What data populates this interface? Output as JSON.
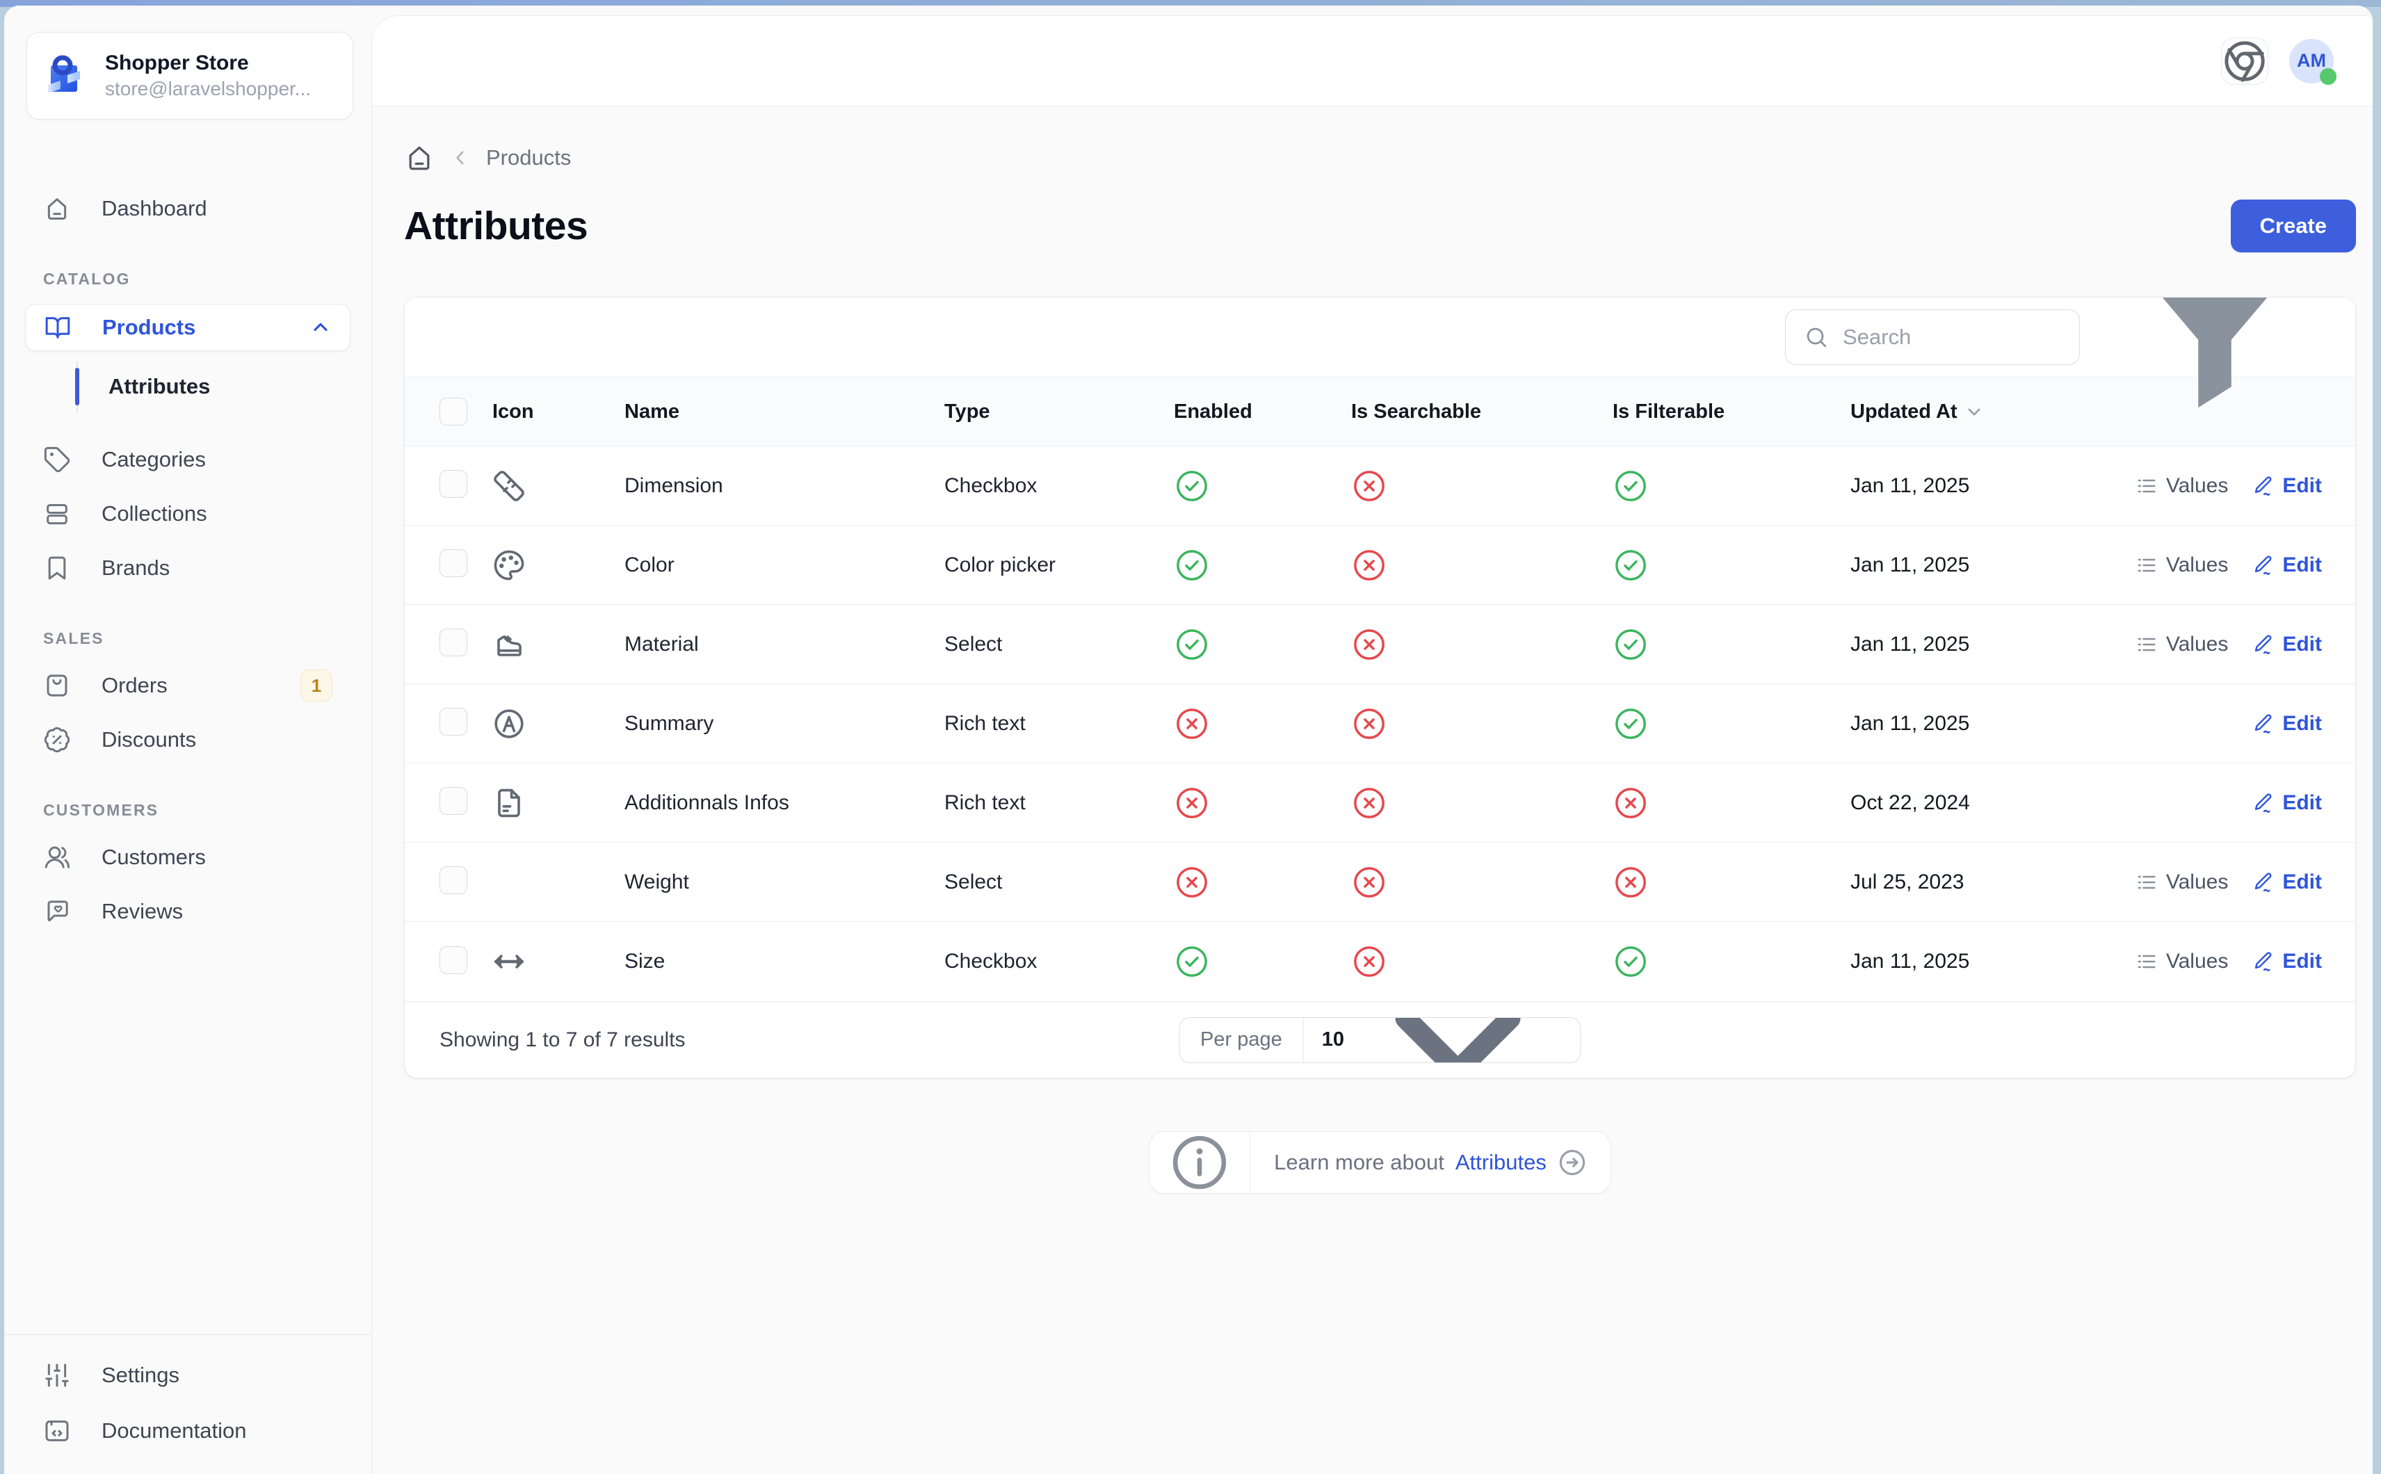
{
  "colors": {
    "accent": "#3d5fdd",
    "link": "#2f54db",
    "success": "#3cb55f",
    "danger": "#e5484d",
    "badge_orange": "#b8821f"
  },
  "store": {
    "name": "Shopper Store",
    "email": "store@laravelshopper..."
  },
  "topbar": {
    "avatar_initials": "AM"
  },
  "sidebar": {
    "dashboard": "Dashboard",
    "sections": {
      "catalog": "CATALOG",
      "sales": "SALES",
      "customers": "CUSTOMERS"
    },
    "products": "Products",
    "products_sub": [
      "Attributes"
    ],
    "categories": "Categories",
    "collections": "Collections",
    "brands": "Brands",
    "orders": "Orders",
    "orders_badge": "1",
    "discounts": "Discounts",
    "customers": "Customers",
    "reviews": "Reviews",
    "settings": "Settings",
    "documentation": "Documentation"
  },
  "breadcrumb": {
    "current": "Products"
  },
  "page": {
    "title": "Attributes",
    "create_label": "Create"
  },
  "toolbar": {
    "search_placeholder": "Search",
    "filter_count": "0"
  },
  "table": {
    "headers": [
      "Icon",
      "Name",
      "Type",
      "Enabled",
      "Is Searchable",
      "Is Filterable",
      "Updated At"
    ],
    "actions": {
      "values_label": "Values",
      "edit_label": "Edit"
    },
    "rows": [
      {
        "icon": "ruler-icon",
        "name": "Dimension",
        "type": "Checkbox",
        "enabled": true,
        "searchable": false,
        "filterable": true,
        "updated": "Jan 11, 2025",
        "values": true
      },
      {
        "icon": "palette-icon",
        "name": "Color",
        "type": "Color picker",
        "enabled": true,
        "searchable": false,
        "filterable": true,
        "updated": "Jan 11, 2025",
        "values": true
      },
      {
        "icon": "shoe-icon",
        "name": "Material",
        "type": "Select",
        "enabled": true,
        "searchable": false,
        "filterable": true,
        "updated": "Jan 11, 2025",
        "values": true
      },
      {
        "icon": "circle-a-icon",
        "name": "Summary",
        "type": "Rich text",
        "enabled": false,
        "searchable": false,
        "filterable": true,
        "updated": "Jan 11, 2025",
        "values": false
      },
      {
        "icon": "file-icon",
        "name": "Additionnals Infos",
        "type": "Rich text",
        "enabled": false,
        "searchable": false,
        "filterable": false,
        "updated": "Oct 22, 2024",
        "values": false
      },
      {
        "icon": null,
        "name": "Weight",
        "type": "Select",
        "enabled": false,
        "searchable": false,
        "filterable": false,
        "updated": "Jul 25, 2023",
        "values": true
      },
      {
        "icon": "move-horizontal-icon",
        "name": "Size",
        "type": "Checkbox",
        "enabled": true,
        "searchable": false,
        "filterable": true,
        "updated": "Jan 11, 2025",
        "values": true
      }
    ]
  },
  "footer": {
    "summary": "Showing 1 to 7 of 7 results",
    "per_page_label": "Per page",
    "per_page_value": "10"
  },
  "learn_more": {
    "prefix": "Learn more about",
    "link": "Attributes"
  }
}
